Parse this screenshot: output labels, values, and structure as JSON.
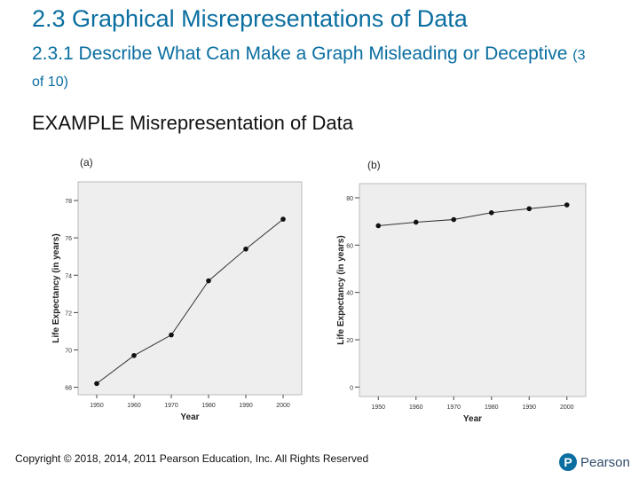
{
  "slide": {
    "title": "2.3 Graphical Misrepresentations of Data",
    "subtitle_main": "2.3.1 Describe What Can Make a Graph Misleading or Deceptive",
    "subtitle_counter": "(3 of 10)",
    "example_heading": "EXAMPLE Misrepresentation of Data",
    "copyright": "Copyright © 2018, 2014, 2011 Pearson Education, Inc. All Rights Reserved",
    "logo_text": "Pearson",
    "logo_letter": "P"
  },
  "colors": {
    "accent": "#0a6ea0",
    "plot_bg": "#eeeeee"
  },
  "chart_data": [
    {
      "type": "line",
      "panel_label": "(a)",
      "x": [
        1950,
        1960,
        1970,
        1980,
        1990,
        2000
      ],
      "values": [
        68.2,
        69.7,
        70.8,
        73.7,
        75.4,
        77.0
      ],
      "xlabel": "Year",
      "ylabel": "Life Expectancy (in years)",
      "ylim": [
        67.6,
        79.0
      ],
      "yticks": [
        68,
        70,
        72,
        74,
        76,
        78
      ],
      "xlim": [
        1945,
        2005
      ]
    },
    {
      "type": "line",
      "panel_label": "(b)",
      "x": [
        1950,
        1960,
        1970,
        1980,
        1990,
        2000
      ],
      "values": [
        68.2,
        69.7,
        70.8,
        73.7,
        75.4,
        77.0
      ],
      "xlabel": "Year",
      "ylabel": "Life Expectancy (in years)",
      "ylim": [
        -4,
        86
      ],
      "yticks": [
        0,
        20,
        40,
        60,
        80
      ],
      "xlim": [
        1945,
        2005
      ]
    }
  ]
}
